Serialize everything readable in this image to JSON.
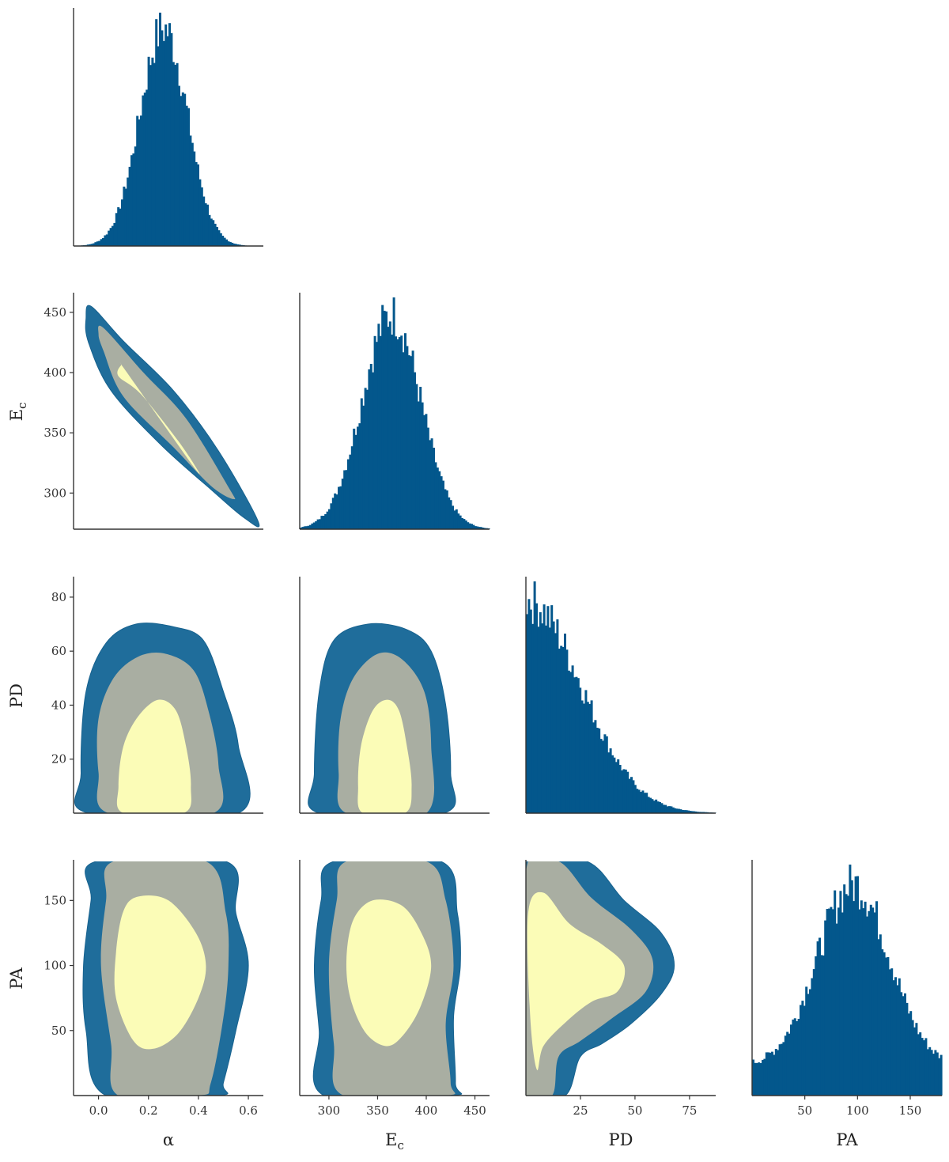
{
  "chart_data": {
    "type": "corner",
    "parameters": [
      {
        "key": "alpha",
        "label": "α",
        "range": [
          -0.1,
          0.66
        ],
        "ticks": [
          0.0,
          0.2,
          0.4,
          0.6
        ],
        "tick_labels": [
          "0.0",
          "0.2",
          "0.4",
          "0.6"
        ]
      },
      {
        "key": "Ec",
        "label": "E",
        "label_sub": "c",
        "range": [
          270,
          465
        ],
        "ticks": [
          300,
          350,
          400,
          450
        ],
        "tick_labels": [
          "300",
          "350",
          "400",
          "450"
        ]
      },
      {
        "key": "PD",
        "label": "PD",
        "range": [
          0,
          87
        ],
        "ticks": [
          20,
          40,
          60,
          80
        ],
        "tick_labels": [
          "20",
          "40",
          "60",
          "80"
        ],
        "x_ticks": [
          25,
          50,
          75
        ],
        "x_tick_labels": [
          "25",
          "50",
          "75"
        ]
      },
      {
        "key": "PA",
        "label": "PA",
        "range": [
          0,
          180
        ],
        "ticks": [
          50,
          100,
          150
        ],
        "tick_labels": [
          "50",
          "100",
          "150"
        ]
      }
    ],
    "histograms": {
      "alpha": {
        "mean": 0.26,
        "sd": 0.095
      },
      "Ec": {
        "mean": 364,
        "sd": 30
      },
      "PD": {
        "mode": 0,
        "scale": 25,
        "shape": "half-normal"
      },
      "PA": {
        "mean": 96,
        "sd": 34,
        "floor": 0.14
      }
    },
    "contour_levels": [
      "1-sigma",
      "2-sigma",
      "3-sigma"
    ],
    "contours": {
      "Ec_vs_alpha": {
        "correlated": true,
        "levels": [
          [
            [
              0.1,
              404
            ],
            [
              0.25,
              360
            ],
            [
              0.38,
              322
            ],
            [
              0.4,
              318
            ],
            [
              0.32,
              343
            ],
            [
              0.17,
              382
            ],
            [
              0.08,
              397
            ],
            [
              0.09,
              406
            ]
          ],
          [
            [
              0.02,
              437
            ],
            [
              0.18,
              400
            ],
            [
              0.35,
              362
            ],
            [
              0.52,
              305
            ],
            [
              0.54,
              295
            ],
            [
              0.45,
              306
            ],
            [
              0.3,
              338
            ],
            [
              0.1,
              380
            ],
            [
              0.02,
              418
            ],
            [
              0.0,
              432
            ]
          ],
          [
            [
              -0.03,
              455
            ],
            [
              0.1,
              426
            ],
            [
              0.3,
              385
            ],
            [
              0.48,
              335
            ],
            [
              0.64,
              276
            ],
            [
              0.58,
              280
            ],
            [
              0.45,
              303
            ],
            [
              0.25,
              340
            ],
            [
              0.05,
              385
            ],
            [
              -0.04,
              425
            ],
            [
              -0.05,
              445
            ]
          ]
        ]
      },
      "PD_vs_alpha": {
        "levels": [
          [
            [
              0.1,
              0
            ],
            [
              0.08,
              10
            ],
            [
              0.1,
              25
            ],
            [
              0.16,
              36
            ],
            [
              0.24,
              42
            ],
            [
              0.31,
              38
            ],
            [
              0.35,
              25
            ],
            [
              0.37,
              10
            ],
            [
              0.34,
              0
            ]
          ],
          [
            [
              0.04,
              0
            ],
            [
              0.0,
              15
            ],
            [
              0.0,
              35
            ],
            [
              0.06,
              50
            ],
            [
              0.16,
              58
            ],
            [
              0.27,
              59
            ],
            [
              0.38,
              53
            ],
            [
              0.44,
              38
            ],
            [
              0.48,
              18
            ],
            [
              0.46,
              0
            ]
          ],
          [
            [
              -0.04,
              0
            ],
            [
              -0.07,
              15
            ],
            [
              -0.05,
              45
            ],
            [
              0.03,
              63
            ],
            [
              0.15,
              70
            ],
            [
              0.3,
              69
            ],
            [
              0.42,
              64
            ],
            [
              0.5,
              45
            ],
            [
              0.56,
              25
            ],
            [
              0.56,
              0
            ]
          ]
        ]
      },
      "PD_vs_Ec": {
        "levels": [
          [
            [
              335,
              0
            ],
            [
              330,
              10
            ],
            [
              333,
              25
            ],
            [
              345,
              38
            ],
            [
              360,
              42
            ],
            [
              372,
              38
            ],
            [
              380,
              25
            ],
            [
              385,
              10
            ],
            [
              378,
              0
            ]
          ],
          [
            [
              318,
              0
            ],
            [
              310,
              15
            ],
            [
              312,
              35
            ],
            [
              325,
              50
            ],
            [
              350,
              59
            ],
            [
              375,
              57
            ],
            [
              398,
              45
            ],
            [
              405,
              25
            ],
            [
              400,
              0
            ]
          ],
          [
            [
              290,
              0
            ],
            [
              285,
              15
            ],
            [
              290,
              45
            ],
            [
              305,
              64
            ],
            [
              340,
              70
            ],
            [
              380,
              68
            ],
            [
              405,
              60
            ],
            [
              420,
              40
            ],
            [
              425,
              15
            ],
            [
              418,
              0
            ]
          ]
        ]
      },
      "PA_vs_alpha": {
        "levels": [
          [
            [
              0.16,
              153
            ],
            [
              0.28,
              150
            ],
            [
              0.39,
              125
            ],
            [
              0.43,
              100
            ],
            [
              0.4,
              75
            ],
            [
              0.32,
              48
            ],
            [
              0.22,
              36
            ],
            [
              0.14,
              42
            ],
            [
              0.07,
              75
            ],
            [
              0.07,
              110
            ],
            [
              0.1,
              142
            ]
          ],
          [
            [
              0.06,
              180
            ],
            [
              0.43,
              180
            ],
            [
              0.51,
              140
            ],
            [
              0.52,
              100
            ],
            [
              0.5,
              60
            ],
            [
              0.45,
              10
            ],
            [
              0.4,
              0
            ],
            [
              0.08,
              0
            ],
            [
              0.05,
              40
            ],
            [
              0.01,
              100
            ],
            [
              0.03,
              150
            ]
          ],
          [
            [
              -0.01,
              180
            ],
            [
              0.51,
              180
            ],
            [
              0.55,
              140
            ],
            [
              0.6,
              100
            ],
            [
              0.55,
              50
            ],
            [
              0.5,
              10
            ],
            [
              0.48,
              0
            ],
            [
              0.03,
              0
            ],
            [
              -0.05,
              50
            ],
            [
              -0.06,
              100
            ],
            [
              -0.03,
              150
            ]
          ]
        ]
      },
      "PA_vs_Ec": {
        "levels": [
          [
            [
              345,
              150
            ],
            [
              375,
              146
            ],
            [
              395,
              125
            ],
            [
              405,
              100
            ],
            [
              395,
              70
            ],
            [
              378,
              48
            ],
            [
              360,
              38
            ],
            [
              338,
              48
            ],
            [
              322,
              75
            ],
            [
              318,
              105
            ],
            [
              325,
              135
            ]
          ],
          [
            [
              318,
              180
            ],
            [
              400,
              180
            ],
            [
              420,
              150
            ],
            [
              428,
              100
            ],
            [
              420,
              55
            ],
            [
              425,
              10
            ],
            [
              420,
              0
            ],
            [
              315,
              0
            ],
            [
              305,
              40
            ],
            [
              300,
              100
            ],
            [
              308,
              150
            ]
          ],
          [
            [
              305,
              180
            ],
            [
              415,
              180
            ],
            [
              432,
              140
            ],
            [
              435,
              100
            ],
            [
              428,
              60
            ],
            [
              430,
              10
            ],
            [
              425,
              0
            ],
            [
              295,
              0
            ],
            [
              290,
              50
            ],
            [
              285,
              100
            ],
            [
              292,
              150
            ]
          ]
        ]
      },
      "PA_vs_PD": {
        "levels": [
          [
            [
              1,
              140
            ],
            [
              8,
              156
            ],
            [
              20,
              132
            ],
            [
              35,
              116
            ],
            [
              45,
              100
            ],
            [
              42,
              80
            ],
            [
              30,
              72
            ],
            [
              18,
              56
            ],
            [
              8,
              38
            ],
            [
              5,
              20
            ],
            [
              2,
              60
            ]
          ],
          [
            [
              0,
              172
            ],
            [
              15,
              180
            ],
            [
              30,
              152
            ],
            [
              48,
              128
            ],
            [
              58,
              105
            ],
            [
              55,
              80
            ],
            [
              40,
              60
            ],
            [
              25,
              42
            ],
            [
              15,
              30
            ],
            [
              12,
              0
            ],
            [
              0,
              0
            ]
          ],
          [
            [
              0,
              180
            ],
            [
              28,
              180
            ],
            [
              45,
              150
            ],
            [
              62,
              125
            ],
            [
              68,
              100
            ],
            [
              62,
              78
            ],
            [
              48,
              55
            ],
            [
              35,
              40
            ],
            [
              25,
              30
            ],
            [
              18,
              0
            ],
            [
              0,
              0
            ]
          ]
        ]
      }
    },
    "colors": {
      "histogram": "#03578c",
      "level_3sigma": "#1f6d9b",
      "level_2sigma": "#a9aea2",
      "level_1sigma": "#fbfcb7",
      "axis": "#333333"
    }
  }
}
